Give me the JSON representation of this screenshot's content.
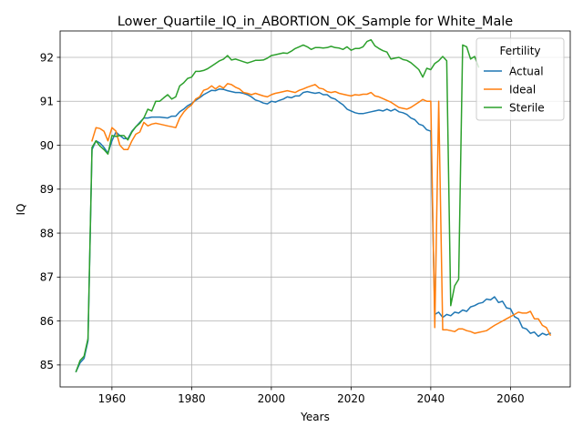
{
  "chart_data": {
    "type": "line",
    "title": "Lower_Quartile_IQ_in_ABORTION_OK_Sample for White_Male",
    "xlabel": "Years",
    "ylabel": "IQ",
    "xlim": [
      1947,
      2075
    ],
    "ylim": [
      84.5,
      92.6
    ],
    "xticks": [
      1960,
      1980,
      2000,
      2020,
      2040,
      2060
    ],
    "yticks": [
      85,
      86,
      87,
      88,
      89,
      90,
      91,
      92
    ],
    "grid": true,
    "legend": {
      "title": "Fertility",
      "placement": "top-right"
    },
    "series": [
      {
        "name": "Actual",
        "color": "#1f77b4",
        "x": [
          1951,
          1952,
          1953,
          1954,
          1955,
          1956,
          1957,
          1958,
          1959,
          1960,
          1961,
          1962,
          1963,
          1964,
          1965,
          1966,
          1967,
          1968,
          1969,
          1970,
          1971,
          1972,
          1973,
          1974,
          1975,
          1976,
          1977,
          1978,
          1979,
          1980,
          1981,
          1982,
          1983,
          1984,
          1985,
          1986,
          1987,
          1988,
          1989,
          1990,
          1991,
          1992,
          1993,
          1994,
          1995,
          1996,
          1997,
          1998,
          1999,
          2000,
          2001,
          2002,
          2003,
          2004,
          2005,
          2006,
          2007,
          2008,
          2009,
          2010,
          2011,
          2012,
          2013,
          2014,
          2015,
          2016,
          2017,
          2018,
          2019,
          2020,
          2021,
          2022,
          2023,
          2024,
          2025,
          2026,
          2027,
          2028,
          2029,
          2030,
          2031,
          2032,
          2033,
          2034,
          2035,
          2036,
          2037,
          2038,
          2039,
          2040,
          2041,
          2042,
          2043,
          2044,
          2045,
          2046,
          2047,
          2048,
          2049,
          2050,
          2051,
          2052,
          2053,
          2054,
          2055,
          2056,
          2057,
          2058,
          2059,
          2060,
          2061,
          2062,
          2063,
          2064,
          2065,
          2066,
          2067,
          2068,
          2069,
          2070
        ],
        "values": [
          84.85,
          85.05,
          85.15,
          85.55,
          89.9,
          90.1,
          90.05,
          89.95,
          89.82,
          90.1,
          90.3,
          90.22,
          90.15,
          90.15,
          90.32,
          90.42,
          90.52,
          90.62,
          90.62,
          90.64,
          90.64,
          90.64,
          90.63,
          90.62,
          90.66,
          90.66,
          90.76,
          90.82,
          90.9,
          90.95,
          91.02,
          91.08,
          91.15,
          91.2,
          91.25,
          91.24,
          91.28,
          91.27,
          91.24,
          91.22,
          91.2,
          91.2,
          91.18,
          91.15,
          91.1,
          91.03,
          91.0,
          90.96,
          90.94,
          91.0,
          90.98,
          91.02,
          91.05,
          91.1,
          91.08,
          91.12,
          91.12,
          91.2,
          91.22,
          91.2,
          91.18,
          91.2,
          91.15,
          91.15,
          91.08,
          91.05,
          90.98,
          90.92,
          90.82,
          90.78,
          90.74,
          90.72,
          90.72,
          90.74,
          90.76,
          90.78,
          90.8,
          90.78,
          90.82,
          90.78,
          90.82,
          90.76,
          90.74,
          90.7,
          90.62,
          90.58,
          90.48,
          90.45,
          90.35,
          90.32,
          86.15,
          86.2,
          86.08,
          86.15,
          86.12,
          86.2,
          86.18,
          86.25,
          86.22,
          86.32,
          86.35,
          86.4,
          86.42,
          86.5,
          86.48,
          86.55,
          86.42,
          86.45,
          86.3,
          86.28,
          86.1,
          86.05,
          85.85,
          85.82,
          85.72,
          85.75,
          85.65,
          85.72,
          85.68,
          85.72
        ]
      },
      {
        "name": "Ideal",
        "color": "#ff7f0e",
        "x": [
          1955,
          1956,
          1957,
          1958,
          1959,
          1960,
          1961,
          1962,
          1963,
          1964,
          1965,
          1966,
          1967,
          1968,
          1969,
          1970,
          1971,
          1972,
          1973,
          1974,
          1975,
          1976,
          1977,
          1978,
          1979,
          1980,
          1981,
          1982,
          1983,
          1984,
          1985,
          1986,
          1987,
          1988,
          1989,
          1990,
          1991,
          1992,
          1993,
          1994,
          1995,
          1996,
          1997,
          1998,
          1999,
          2000,
          2001,
          2002,
          2003,
          2004,
          2005,
          2006,
          2007,
          2008,
          2009,
          2010,
          2011,
          2012,
          2013,
          2014,
          2015,
          2016,
          2017,
          2018,
          2019,
          2020,
          2021,
          2022,
          2023,
          2024,
          2025,
          2026,
          2027,
          2028,
          2029,
          2030,
          2031,
          2032,
          2033,
          2034,
          2035,
          2036,
          2037,
          2038,
          2039,
          2040,
          2041,
          2042,
          2043,
          2044,
          2045,
          2046,
          2047,
          2048,
          2049,
          2050,
          2051,
          2052,
          2053,
          2054,
          2055,
          2056,
          2057,
          2058,
          2059,
          2060,
          2061,
          2062,
          2063,
          2064,
          2065,
          2066,
          2067,
          2068,
          2069,
          2070
        ],
        "values": [
          90.1,
          90.4,
          90.38,
          90.32,
          90.1,
          90.4,
          90.32,
          90.0,
          89.9,
          89.9,
          90.1,
          90.25,
          90.3,
          90.52,
          90.44,
          90.48,
          90.5,
          90.48,
          90.46,
          90.44,
          90.42,
          90.4,
          90.62,
          90.75,
          90.85,
          90.92,
          91.05,
          91.1,
          91.25,
          91.28,
          91.35,
          91.28,
          91.35,
          91.3,
          91.4,
          91.38,
          91.32,
          91.28,
          91.2,
          91.18,
          91.15,
          91.18,
          91.15,
          91.12,
          91.1,
          91.15,
          91.18,
          91.2,
          91.22,
          91.24,
          91.22,
          91.2,
          91.25,
          91.28,
          91.32,
          91.35,
          91.38,
          91.3,
          91.28,
          91.22,
          91.2,
          91.22,
          91.18,
          91.16,
          91.14,
          91.12,
          91.15,
          91.14,
          91.16,
          91.16,
          91.2,
          91.12,
          91.1,
          91.06,
          91.02,
          90.98,
          90.92,
          90.86,
          90.84,
          90.82,
          90.86,
          90.92,
          90.98,
          91.04,
          91.0,
          91.0,
          85.85,
          91.0,
          85.8,
          85.8,
          85.78,
          85.76,
          85.82,
          85.82,
          85.78,
          85.76,
          85.72,
          85.74,
          85.76,
          85.78,
          85.84,
          85.9,
          85.95,
          86.0,
          86.05,
          86.1,
          86.15,
          86.2,
          86.18,
          86.18,
          86.22,
          86.05,
          86.05,
          85.9,
          85.85,
          85.68
        ]
      },
      {
        "name": "Sterile",
        "color": "#2ca02c",
        "x": [
          1951,
          1952,
          1953,
          1954,
          1955,
          1956,
          1957,
          1958,
          1959,
          1960,
          1961,
          1962,
          1963,
          1964,
          1965,
          1966,
          1967,
          1968,
          1969,
          1970,
          1971,
          1972,
          1973,
          1974,
          1975,
          1976,
          1977,
          1978,
          1979,
          1980,
          1981,
          1982,
          1983,
          1984,
          1985,
          1986,
          1987,
          1988,
          1989,
          1990,
          1991,
          1992,
          1993,
          1994,
          1995,
          1996,
          1997,
          1998,
          1999,
          2000,
          2001,
          2002,
          2003,
          2004,
          2005,
          2006,
          2007,
          2008,
          2009,
          2010,
          2011,
          2012,
          2013,
          2014,
          2015,
          2016,
          2017,
          2018,
          2019,
          2020,
          2021,
          2022,
          2023,
          2024,
          2025,
          2026,
          2027,
          2028,
          2029,
          2030,
          2031,
          2032,
          2033,
          2034,
          2035,
          2036,
          2037,
          2038,
          2039,
          2040,
          2041,
          2042,
          2043,
          2044,
          2045,
          2046,
          2047,
          2048,
          2049,
          2050,
          2051,
          2052
        ],
        "values": [
          84.85,
          85.1,
          85.2,
          85.6,
          89.95,
          90.1,
          89.98,
          89.9,
          89.8,
          90.22,
          90.2,
          90.22,
          90.22,
          90.12,
          90.3,
          90.42,
          90.5,
          90.62,
          90.82,
          90.78,
          91.0,
          91.0,
          91.08,
          91.15,
          91.05,
          91.1,
          91.35,
          91.42,
          91.52,
          91.55,
          91.68,
          91.68,
          91.7,
          91.74,
          91.8,
          91.86,
          91.92,
          91.96,
          92.04,
          91.94,
          91.96,
          91.93,
          91.9,
          91.87,
          91.9,
          91.93,
          91.93,
          91.94,
          91.98,
          92.04,
          92.06,
          92.08,
          92.1,
          92.09,
          92.14,
          92.2,
          92.24,
          92.28,
          92.24,
          92.18,
          92.22,
          92.22,
          92.21,
          92.22,
          92.25,
          92.22,
          92.21,
          92.18,
          92.24,
          92.16,
          92.2,
          92.2,
          92.24,
          92.36,
          92.4,
          92.26,
          92.2,
          92.15,
          92.12,
          91.96,
          91.98,
          92.0,
          91.95,
          91.93,
          91.88,
          91.8,
          91.72,
          91.55,
          91.75,
          91.72,
          91.86,
          91.92,
          92.02,
          91.92,
          86.35,
          86.8,
          86.95,
          92.28,
          92.24,
          91.96,
          92.02,
          91.78
        ]
      }
    ]
  }
}
